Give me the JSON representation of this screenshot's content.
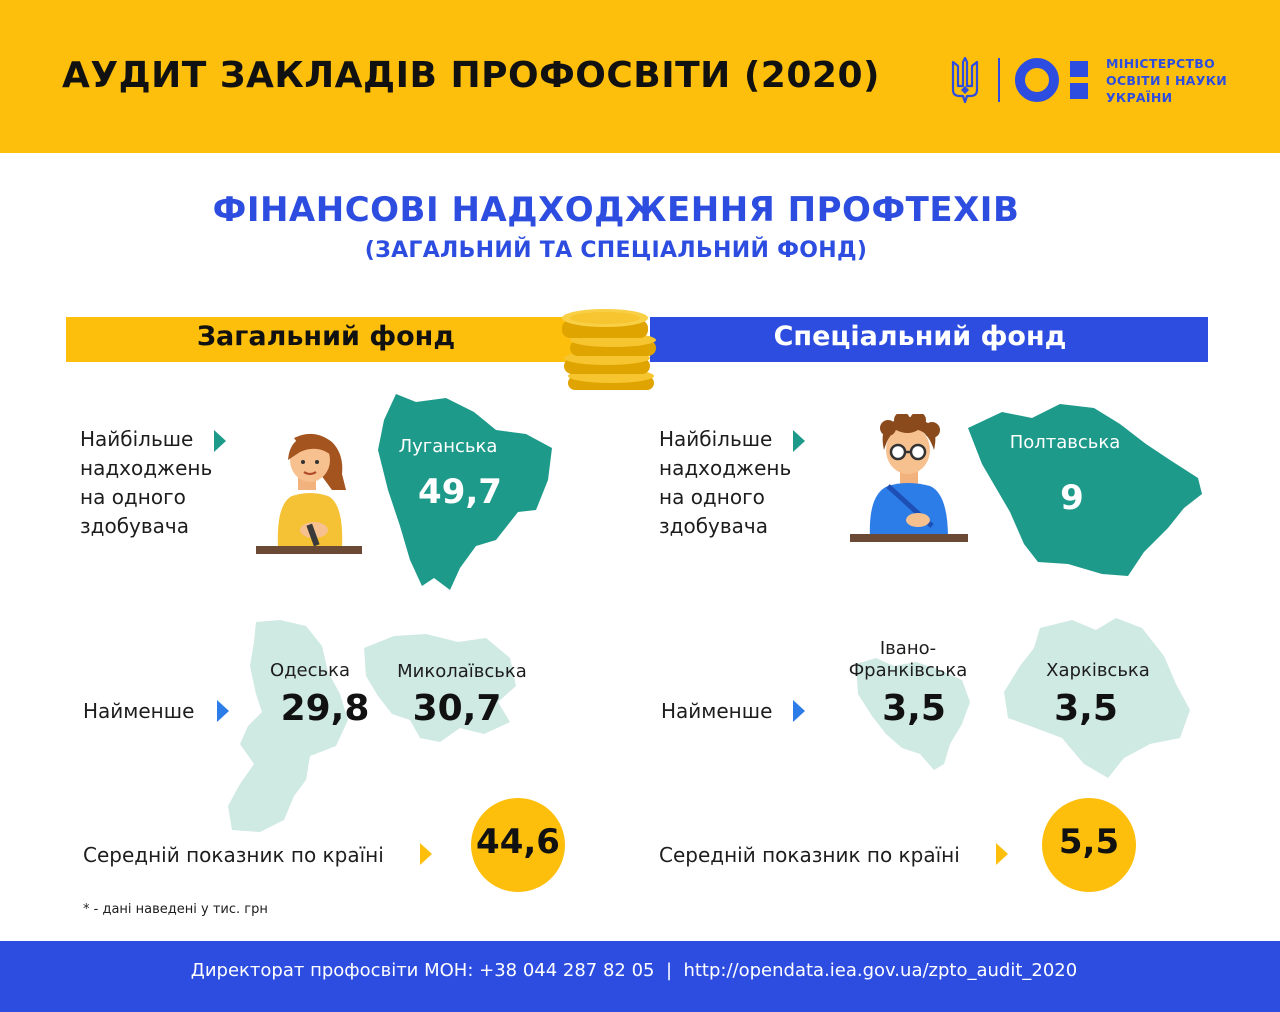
{
  "header": {
    "title": "АУДИТ ЗАКЛАДІВ ПРОФОСВІТИ (2020)",
    "ministry_lines": [
      "МІНІСТЕРСТВО",
      "ОСВІТИ І НАУКИ",
      "УКРАЇНИ"
    ]
  },
  "headline": {
    "title": "ФІНАНСОВІ НАДХОДЖЕННЯ ПРОФТЕХІВ",
    "subtitle": "(ЗАГАЛЬНИЙ ТА СПЕЦІАЛЬНИЙ ФОНД)"
  },
  "general_fund": {
    "label": "Загальний фонд",
    "most_lines": [
      "Найбільше",
      "надходжень",
      "на одного",
      "здобувача"
    ],
    "most_region": "Луганська",
    "most_value": "49,7",
    "least_label": "Найменше",
    "least": [
      {
        "region": "Одеська",
        "value": "29,8"
      },
      {
        "region": "Миколаївська",
        "value": "30,7"
      }
    ],
    "avg_label": "Середній показник по країні",
    "avg_value": "44,6"
  },
  "special_fund": {
    "label": "Спеціальний фонд",
    "most_lines": [
      "Найбільше",
      "надходжень",
      "на одного",
      "здобувача"
    ],
    "most_region": "Полтавська",
    "most_value": "9",
    "least_label": "Найменше",
    "least": [
      {
        "region_lines": [
          "Івано-",
          "Франківська"
        ],
        "value": "3,5"
      },
      {
        "region": "Харківська",
        "value": "3,5"
      }
    ],
    "avg_label": "Середній показник по країні",
    "avg_value": "5,5"
  },
  "footnote": "* - дані наведені у тис. грн",
  "footer": {
    "text": "Директорат профосвіти МОН: +38 044 287 82 05  |  http://opendata.iea.gov.ua/zpto_audit_2020"
  },
  "colors": {
    "yellow": "#fdbf0b",
    "blue": "#2d4de0",
    "teal": "#1e9a8b",
    "light_teal": "#cfe9e3"
  }
}
